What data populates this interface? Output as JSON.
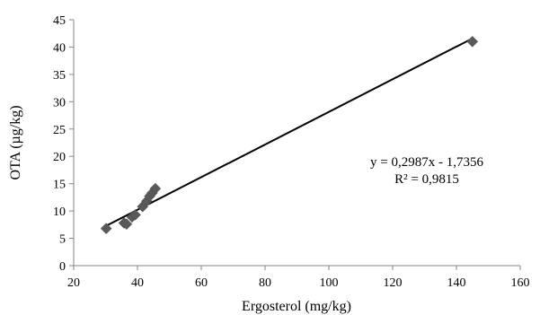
{
  "chart_data": {
    "type": "scatter",
    "xlabel": "Ergosterol (mg/kg)",
    "ylabel": "OTA (µg/kg)",
    "xlim": [
      20,
      160
    ],
    "ylim": [
      0,
      45
    ],
    "x_ticks": [
      20,
      40,
      60,
      80,
      100,
      120,
      140,
      160
    ],
    "y_ticks": [
      0,
      5,
      10,
      15,
      20,
      25,
      30,
      35,
      40,
      45
    ],
    "grid": false,
    "legend": "none",
    "marker": "diamond",
    "marker_color": "#595959",
    "trendline_color": "#000000",
    "series": [
      {
        "x": [
          30.2,
          35.8,
          36.6,
          38.3,
          39.3,
          41.6,
          42.9,
          43.8,
          44.6,
          45.6,
          145.0
        ],
        "y": [
          6.8,
          7.8,
          7.6,
          8.9,
          9.3,
          10.8,
          11.8,
          12.7,
          13.3,
          14.1,
          41.0
        ]
      }
    ],
    "trendline": {
      "slope": 0.2987,
      "intercept": -1.7356,
      "x_range": [
        30.2,
        145.0
      ]
    },
    "annotations": {
      "equation": "y = 0,2987x - 1,7356",
      "r_squared": "R² = 0,9815"
    }
  }
}
